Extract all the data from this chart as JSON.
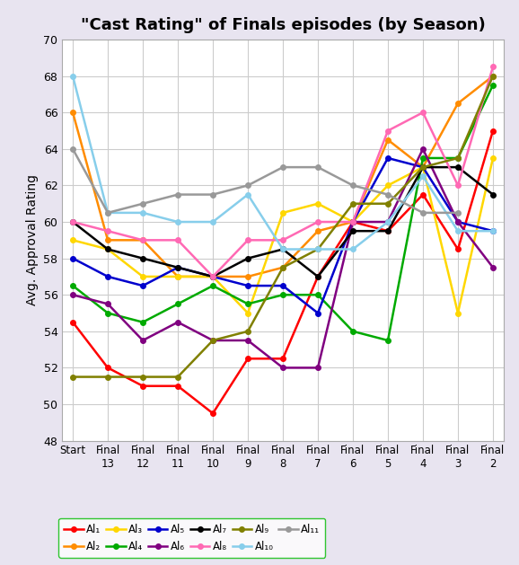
{
  "title": "\"Cast Rating\" of Finals episodes (by Season)",
  "ylabel": "Avg. Approval Rating",
  "xlabels": [
    "Start",
    "Final\n13",
    "Final\n12",
    "Final\n11",
    "Final\n10",
    "Final\n9",
    "Final\n8",
    "Final\n7",
    "Final\n6",
    "Final\n5",
    "Final\n4",
    "Final\n3",
    "Final\n2"
  ],
  "ylim": [
    48,
    70
  ],
  "yticks": [
    48,
    50,
    52,
    54,
    56,
    58,
    60,
    62,
    64,
    66,
    68,
    70
  ],
  "figure_bg": "#e8e4f0",
  "plot_bg": "#ffffff",
  "grid_color": "#cccccc",
  "series_order": [
    "Al1",
    "Al2",
    "Al3",
    "Al4",
    "Al5",
    "Al6",
    "Al7",
    "Al8",
    "Al9",
    "Al10",
    "Al11"
  ],
  "series": {
    "Al1": {
      "color": "#ff0000",
      "values": [
        54.5,
        52.0,
        51.0,
        51.0,
        49.5,
        52.5,
        52.5,
        57.0,
        60.0,
        59.5,
        61.5,
        58.5,
        65.0
      ]
    },
    "Al2": {
      "color": "#ff8c00",
      "values": [
        66.0,
        59.0,
        59.0,
        57.0,
        57.0,
        57.0,
        57.5,
        59.5,
        60.0,
        64.5,
        63.0,
        66.5,
        68.0
      ]
    },
    "Al3": {
      "color": "#ffd700",
      "values": [
        59.0,
        58.5,
        57.0,
        57.0,
        57.0,
        55.0,
        60.5,
        61.0,
        60.0,
        62.0,
        63.0,
        55.0,
        63.5
      ]
    },
    "Al4": {
      "color": "#00aa00",
      "values": [
        56.5,
        55.0,
        54.5,
        55.5,
        56.5,
        55.5,
        56.0,
        56.0,
        54.0,
        53.5,
        63.5,
        63.5,
        67.5
      ]
    },
    "Al5": {
      "color": "#0000cd",
      "values": [
        58.0,
        57.0,
        56.5,
        57.5,
        57.0,
        56.5,
        56.5,
        55.0,
        60.0,
        63.5,
        63.0,
        60.0,
        59.5
      ]
    },
    "Al6": {
      "color": "#800080",
      "values": [
        56.0,
        55.5,
        53.5,
        54.5,
        53.5,
        53.5,
        52.0,
        52.0,
        60.0,
        60.0,
        64.0,
        60.0,
        57.5
      ]
    },
    "Al7": {
      "color": "#000000",
      "values": [
        60.0,
        58.5,
        58.0,
        57.5,
        57.0,
        58.0,
        58.5,
        57.0,
        59.5,
        59.5,
        63.0,
        63.0,
        61.5
      ]
    },
    "Al8": {
      "color": "#ff69b4",
      "values": [
        60.0,
        59.5,
        59.0,
        59.0,
        57.0,
        59.0,
        59.0,
        60.0,
        60.0,
        65.0,
        66.0,
        62.0,
        68.5
      ]
    },
    "Al9": {
      "color": "#808000",
      "values": [
        51.5,
        51.5,
        51.5,
        51.5,
        53.5,
        54.0,
        57.5,
        58.5,
        61.0,
        61.0,
        63.0,
        63.5,
        68.0
      ]
    },
    "Al10": {
      "color": "#87ceeb",
      "values": [
        68.0,
        60.5,
        60.5,
        60.0,
        60.0,
        61.5,
        58.5,
        58.5,
        58.5,
        60.0,
        62.5,
        59.5,
        59.5
      ]
    },
    "Al11": {
      "color": "#999999",
      "values": [
        64.0,
        60.5,
        61.0,
        61.5,
        61.5,
        62.0,
        63.0,
        63.0,
        62.0,
        61.5,
        60.5,
        60.5,
        null
      ]
    }
  }
}
